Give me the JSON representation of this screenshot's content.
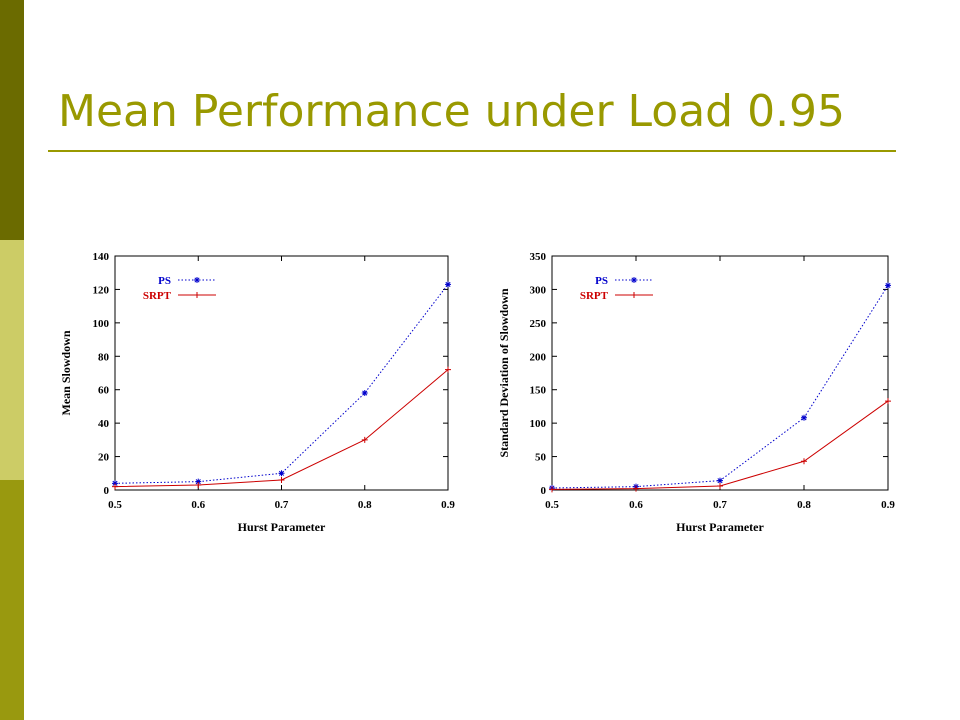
{
  "slide": {
    "title": "Mean Performance under Load 0.95",
    "accent_color": "#999900"
  },
  "chart_data": [
    {
      "type": "line",
      "xlabel": "Hurst Parameter",
      "ylabel": "Mean Slowdown",
      "x": [
        0.5,
        0.6,
        0.7,
        0.8,
        0.9
      ],
      "x_ticks": [
        "0.5",
        "0.6",
        "0.7",
        "0.8",
        "0.9"
      ],
      "y_ticks": [
        "0",
        "20",
        "40",
        "60",
        "80",
        "100",
        "120",
        "140"
      ],
      "xlim": [
        0.5,
        0.9
      ],
      "ylim": [
        0,
        140
      ],
      "grid": false,
      "legend_position": "top-left",
      "series": [
        {
          "name": "PS",
          "values": [
            4,
            5,
            10,
            58,
            123
          ],
          "color": "#0000cc",
          "line_style": "dotted",
          "marker": "star"
        },
        {
          "name": "SRPT",
          "values": [
            2,
            3,
            6,
            30,
            72
          ],
          "color": "#cc0000",
          "line_style": "solid",
          "marker": "plus"
        }
      ]
    },
    {
      "type": "line",
      "xlabel": "Hurst Parameter",
      "ylabel": "Standard Deviation of Slowdown",
      "x": [
        0.5,
        0.6,
        0.7,
        0.8,
        0.9
      ],
      "x_ticks": [
        "0.5",
        "0.6",
        "0.7",
        "0.8",
        "0.9"
      ],
      "y_ticks": [
        "0",
        "50",
        "100",
        "150",
        "200",
        "250",
        "300",
        "350"
      ],
      "xlim": [
        0.5,
        0.9
      ],
      "ylim": [
        0,
        350
      ],
      "grid": false,
      "legend_position": "top-left",
      "series": [
        {
          "name": "PS",
          "values": [
            3,
            5,
            14,
            108,
            306
          ],
          "color": "#0000cc",
          "line_style": "dotted",
          "marker": "star"
        },
        {
          "name": "SRPT",
          "values": [
            1,
            2,
            6,
            43,
            133
          ],
          "color": "#cc0000",
          "line_style": "solid",
          "marker": "plus"
        }
      ]
    }
  ]
}
